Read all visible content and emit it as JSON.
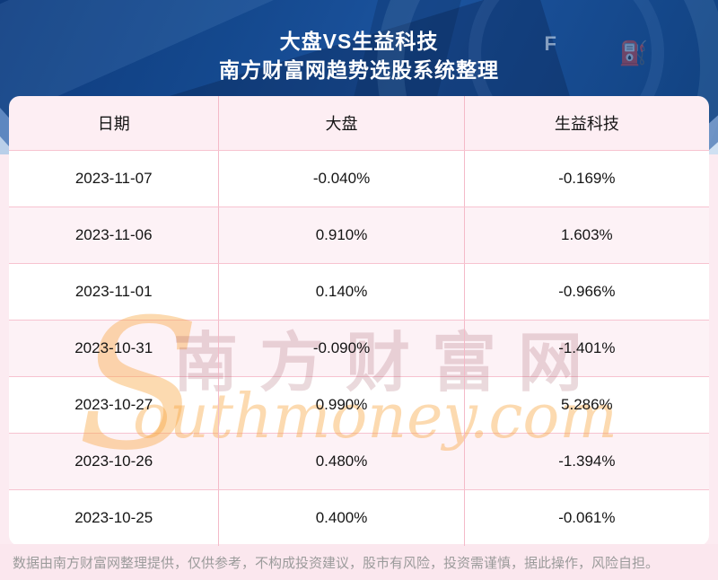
{
  "banner": {
    "title": "大盘VS生益科技",
    "subtitle": "南方财富网趋势选股系统整理",
    "gauge_letter": "F",
    "gauge_pump_icon": "fuel-pump"
  },
  "table": {
    "columns": [
      "日期",
      "大盘",
      "生益科技"
    ],
    "rows": [
      [
        "2023-11-07",
        "-0.040%",
        "-0.169%"
      ],
      [
        "2023-11-06",
        "0.910%",
        "1.603%"
      ],
      [
        "2023-11-01",
        "0.140%",
        "-0.966%"
      ],
      [
        "2023-10-31",
        "-0.090%",
        "-1.401%"
      ],
      [
        "2023-10-27",
        "0.990%",
        "5.286%"
      ],
      [
        "2023-10-26",
        "0.480%",
        "-1.394%"
      ],
      [
        "2023-10-25",
        "0.400%",
        "-0.061%"
      ]
    ]
  },
  "watermark": {
    "s_glyph": "S",
    "cn_text": "南方财富网",
    "en_text": "outhmoney.com"
  },
  "footer": {
    "disclaimer": "数据由南方财富网整理提供，仅供参考，不构成投资建议，股市有风险，投资需谨慎，据此操作，风险自担。"
  },
  "colors": {
    "banner_blue": "#14488d",
    "table_border_pink": "#f4bac8",
    "header_row_pink": "#fdeef3",
    "alt_row_pink": "#fdf2f6",
    "page_pink": "#fcebf1",
    "watermark_orange": "#f7a842",
    "footer_text_gray": "#9b9b9b"
  }
}
